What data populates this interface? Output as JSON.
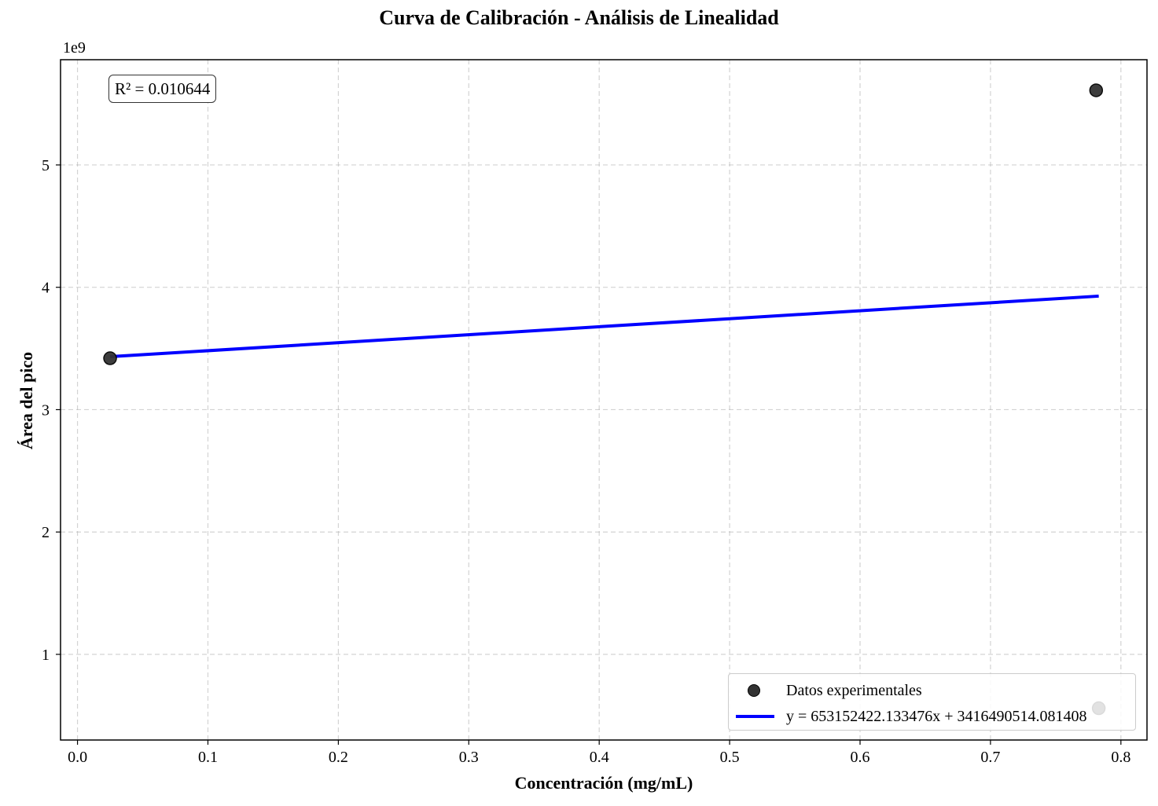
{
  "chart_data": {
    "type": "scatter",
    "title": "Curva de Calibración - Análisis de Linealidad",
    "xlabel": "Concentración (mg/mL)",
    "ylabel": "Área del pico",
    "y_offset_label": "1e9",
    "xlim": [
      -0.013,
      0.82
    ],
    "ylim": [
      0.3,
      5.86
    ],
    "y_unit_scale": 1000000000,
    "xticks": [
      0.0,
      0.1,
      0.2,
      0.3,
      0.4,
      0.5,
      0.6,
      0.7,
      0.8
    ],
    "xtick_labels": [
      "0.0",
      "0.1",
      "0.2",
      "0.3",
      "0.4",
      "0.5",
      "0.6",
      "0.7",
      "0.8"
    ],
    "yticks": [
      1,
      2,
      3,
      4,
      5
    ],
    "ytick_labels": [
      "1",
      "2",
      "3",
      "4",
      "5"
    ],
    "grid": true,
    "series": [
      {
        "name": "Datos experimentales",
        "kind": "scatter",
        "color": "#333333",
        "edge_color": "#000000",
        "x": [
          0.025,
          0.781,
          0.783
        ],
        "y": [
          3.42,
          5.61,
          0.56
        ]
      },
      {
        "name": "y = 653152422.133476x + 3416490514.081408",
        "kind": "line",
        "color": "#0000ff",
        "x": [
          0.025,
          0.783
        ],
        "y": [
          3.4328,
          3.9279
        ]
      }
    ],
    "annotation": "R² = 0.010644",
    "legend_position": "lower-right"
  }
}
